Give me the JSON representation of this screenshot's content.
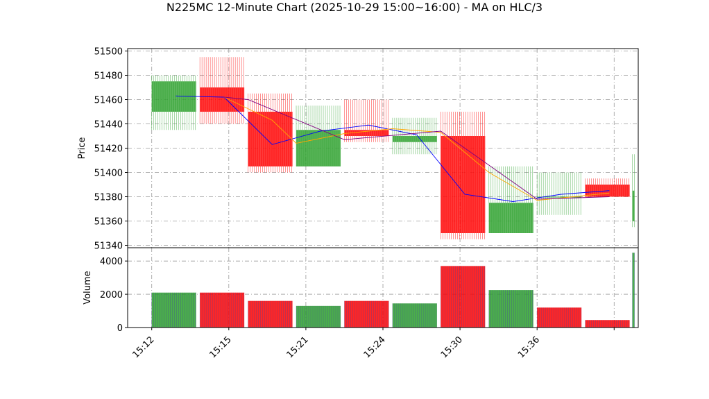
{
  "title": "N225MC 12-Minute Chart (2025-10-29 15:00~16:00) - MA on HLC/3",
  "chart_data": [
    {
      "type": "candlestick",
      "panel": "price",
      "ylabel": "Price",
      "ylim": [
        51338,
        51502
      ],
      "yticks": [
        51340,
        51360,
        51380,
        51400,
        51420,
        51440,
        51460,
        51480,
        51500
      ],
      "xticks": [
        {
          "label": "15:12",
          "at": 0
        },
        {
          "label": "15:15",
          "at": 1.6
        },
        {
          "label": "15:21",
          "at": 3.2
        },
        {
          "label": "15:24",
          "at": 4.8
        },
        {
          "label": "15:30",
          "at": 6.4
        },
        {
          "label": "15:36",
          "at": 8.0
        },
        {
          "label": "",
          "at": 9.6
        }
      ],
      "xlim": [
        -0.5,
        10.1
      ],
      "grid": true,
      "up_color": "#2ca02c",
      "down_color": "#ff0000",
      "candles": [
        {
          "open": 51450,
          "high": 51480,
          "low": 51435,
          "close": 51475
        },
        {
          "open": 51470,
          "high": 51495,
          "low": 51440,
          "close": 51450
        },
        {
          "open": 51450,
          "high": 51465,
          "low": 51400,
          "close": 51405
        },
        {
          "open": 51405,
          "high": 51455,
          "low": 51405,
          "close": 51435
        },
        {
          "open": 51435,
          "high": 51460,
          "low": 51425,
          "close": 51430
        },
        {
          "open": 51425,
          "high": 51445,
          "low": 51415,
          "close": 51430
        },
        {
          "open": 51430,
          "high": 51450,
          "low": 51345,
          "close": 51350
        },
        {
          "open": 51350,
          "high": 51405,
          "low": 51350,
          "close": 51375
        },
        {
          "open": 51380,
          "high": 51400,
          "low": 51365,
          "close": 51380
        },
        {
          "open": 51390,
          "high": 51395,
          "low": 51380,
          "close": 51380
        },
        {
          "open": 51360,
          "high": 51415,
          "low": 51355,
          "close": 51385
        }
      ],
      "moving_averages": [
        {
          "color": "#0000ff",
          "points": [
            [
              0.5,
              51463
            ],
            [
              1.5,
              51462
            ],
            [
              2.5,
              51423
            ],
            [
              3.5,
              51434
            ],
            [
              4.5,
              51439
            ],
            [
              5.5,
              51431
            ],
            [
              6.5,
              51382
            ],
            [
              7.5,
              51376
            ],
            [
              8.5,
              51382
            ],
            [
              9.5,
              51385
            ]
          ]
        },
        {
          "color": "#ffa500",
          "points": [
            [
              1.5,
              51462
            ],
            [
              2.5,
              51443
            ],
            [
              3.0,
              51424
            ],
            [
              4.0,
              51432
            ],
            [
              5.0,
              51436
            ],
            [
              6.0,
              51433
            ],
            [
              7.0,
              51400
            ],
            [
              8.0,
              51377
            ],
            [
              9.0,
              51381
            ],
            [
              9.5,
              51383
            ]
          ]
        },
        {
          "color": "#800080",
          "points": [
            [
              1.5,
              51462
            ],
            [
              2.0,
              51460
            ],
            [
              4.0,
              51427
            ],
            [
              6.0,
              51434
            ],
            [
              8.0,
              51378
            ],
            [
              9.5,
              51380
            ]
          ]
        }
      ]
    },
    {
      "type": "bar",
      "panel": "volume",
      "ylabel": "Volume",
      "ylim": [
        0,
        4800
      ],
      "yticks": [
        0,
        2000,
        4000
      ],
      "values": [
        2100,
        2100,
        1600,
        1300,
        1600,
        1450,
        3700,
        2250,
        1200,
        450,
        4500
      ],
      "colors": [
        "#2ca02c",
        "#ff0000",
        "#ff0000",
        "#2ca02c",
        "#ff0000",
        "#2ca02c",
        "#ff0000",
        "#2ca02c",
        "#ff0000",
        "#ff0000",
        "#2ca02c"
      ],
      "grid": true
    }
  ]
}
